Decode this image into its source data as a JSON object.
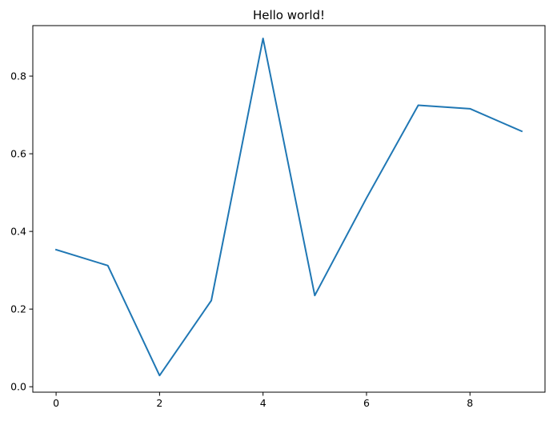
{
  "chart_data": {
    "type": "line",
    "title": "Hello world!",
    "xlabel": "",
    "ylabel": "",
    "xlim": [
      -0.45,
      9.45
    ],
    "ylim": [
      -0.014,
      0.93
    ],
    "xticks": [
      0,
      2,
      4,
      6,
      8
    ],
    "yticks": [
      0.0,
      0.2,
      0.4,
      0.6,
      0.8
    ],
    "grid": false,
    "series": [
      {
        "color": "#1f77b4",
        "x": [
          0,
          1,
          2,
          3,
          4,
          5,
          6,
          7,
          8,
          9
        ],
        "y": [
          0.353,
          0.312,
          0.029,
          0.222,
          0.897,
          0.235,
          0.486,
          0.725,
          0.716,
          0.658
        ]
      }
    ]
  }
}
